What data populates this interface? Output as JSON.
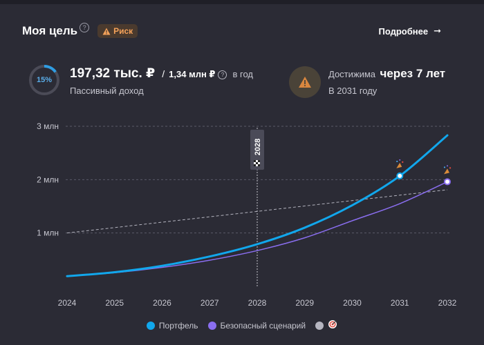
{
  "header": {
    "title": "Моя цель",
    "help": "?",
    "risk_label": "Риск",
    "more_label": "Подробнее",
    "more_arrow": "➞"
  },
  "progress": {
    "percent_label": "15%",
    "value": 0.15
  },
  "income": {
    "value": "197,32 тыс. ₽",
    "separator": "/",
    "target": "1,34 млн ₽",
    "help": "?",
    "period": "в год",
    "label": "Пассивный доход"
  },
  "reach": {
    "label": "Достижима",
    "value": "через 7 лет",
    "sub": "В 2031 году"
  },
  "colors": {
    "portfolio": "#11a7ec",
    "safe": "#8a6ef0",
    "goal": "#b5b5c0",
    "risk": "#f5a25a",
    "background": "#2b2b35"
  },
  "chart_data": {
    "type": "line",
    "x": [
      2024,
      2025,
      2026,
      2027,
      2028,
      2029,
      2030,
      2031,
      2032
    ],
    "xticks": [
      "2024",
      "2025",
      "2026",
      "2027",
      "2028",
      "2029",
      "2030",
      "2031",
      "2032"
    ],
    "yticks": [
      "1 млн",
      "2 млн",
      "3 млн"
    ],
    "ytick_values": [
      1000000,
      2000000,
      3000000
    ],
    "ylim": [
      0,
      3000000
    ],
    "grid": true,
    "marker_year": "2028",
    "series": [
      {
        "name": "Портфель",
        "values": [
          190000,
          265000,
          385000,
          560000,
          790000,
          1100000,
          1520000,
          2070000,
          2830000
        ],
        "color": "#11a7ec"
      },
      {
        "name": "Безопасный сценарий",
        "values": [
          190000,
          255000,
          355000,
          490000,
          670000,
          910000,
          1230000,
          1550000,
          1960000
        ],
        "color": "#8a6ef0"
      },
      {
        "name": "",
        "values": [
          1000000,
          null,
          null,
          null,
          null,
          null,
          null,
          null,
          1810000
        ],
        "color": "#b5b5c0",
        "dashed": true
      }
    ],
    "goal_points": [
      {
        "series": "Портфель",
        "x": 2031,
        "y": 2070000
      },
      {
        "series": "Безопасный сценарий",
        "x": 2032,
        "y": 1960000
      }
    ]
  },
  "legend": {
    "items": [
      {
        "label": "Портфель",
        "color": "#11a7ec"
      },
      {
        "label": "Безопасный сценарий",
        "color": "#8a6ef0"
      },
      {
        "label": "",
        "color": "#b5b5c0"
      }
    ],
    "target_icon": "target-icon"
  }
}
